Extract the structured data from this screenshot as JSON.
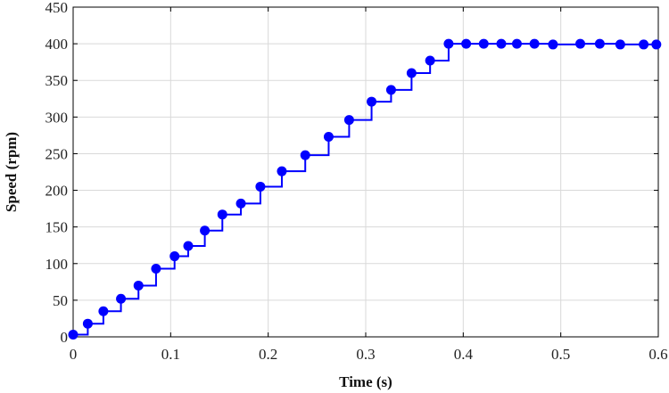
{
  "chart_data": {
    "type": "line",
    "step": true,
    "xlabel": "Time (s)",
    "ylabel": "Speed (rpm)",
    "xlim": [
      0,
      0.6
    ],
    "ylim": [
      0,
      450
    ],
    "grid": true,
    "line_color": "#0000ff",
    "xticks": [
      0,
      0.1,
      0.2,
      0.3,
      0.4,
      0.5,
      0.6
    ],
    "xtick_labels": [
      "0",
      "0.1",
      "0.2",
      "0.3",
      "0.4",
      "0.5",
      "0.6"
    ],
    "yticks": [
      0,
      50,
      100,
      150,
      200,
      250,
      300,
      350,
      400,
      450
    ],
    "ytick_labels": [
      "0",
      "50",
      "100",
      "150",
      "200",
      "250",
      "300",
      "350",
      "400",
      "450"
    ],
    "series": [
      {
        "x": [
          0.0,
          0.015,
          0.031,
          0.049,
          0.067,
          0.085,
          0.104,
          0.118,
          0.135,
          0.153,
          0.172,
          0.192,
          0.214,
          0.238,
          0.262,
          0.283,
          0.306,
          0.326,
          0.347,
          0.366,
          0.385,
          0.403,
          0.421,
          0.439,
          0.455,
          0.473,
          0.492,
          0.52,
          0.54,
          0.561,
          0.585,
          0.598
        ],
        "y": [
          3,
          18,
          35,
          52,
          70,
          93,
          110,
          124,
          145,
          167,
          182,
          205,
          226,
          248,
          273,
          296,
          321,
          337,
          360,
          377,
          400,
          400,
          400,
          400,
          400,
          400,
          399,
          400,
          400,
          399,
          399,
          399
        ]
      }
    ]
  }
}
